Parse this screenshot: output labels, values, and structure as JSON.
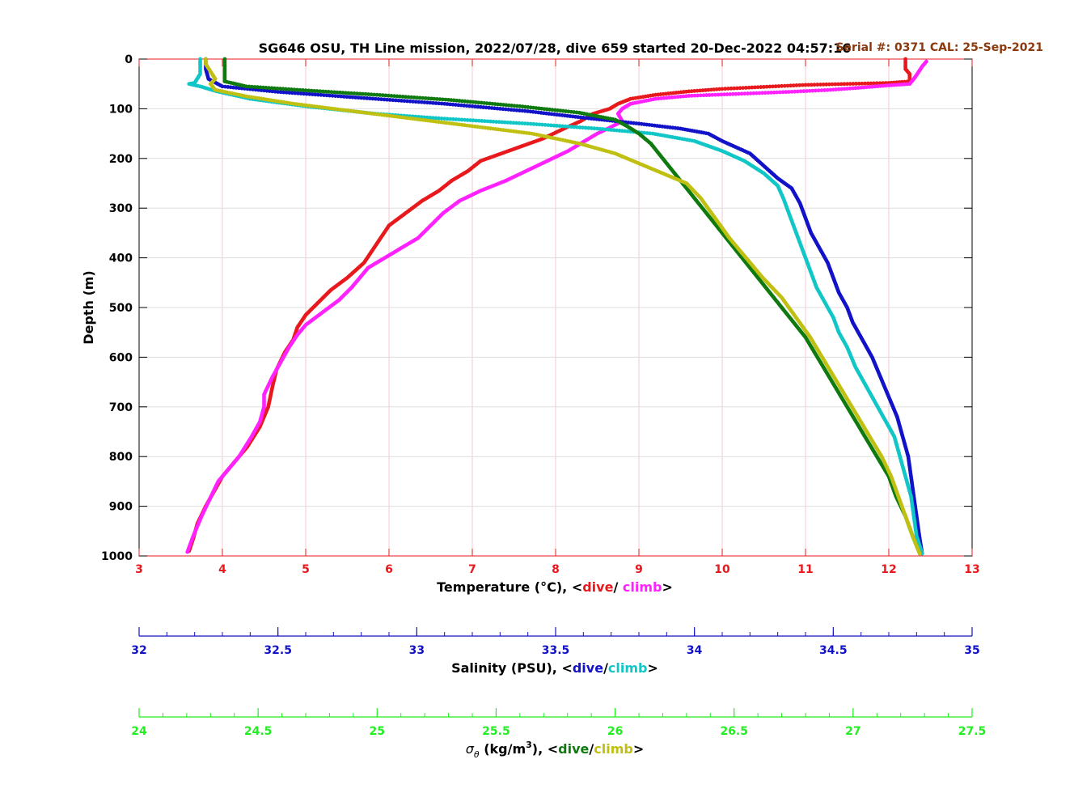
{
  "chart_data": {
    "type": "scatter",
    "title": "SG646 OSU, TH Line mission, 2022/07/28, dive 659 started 20-Dec-2022 04:57:16",
    "annotation": "Serial #: 0371  CAL: 25-Sep-2021",
    "ylabel": "Depth (m)",
    "ylim": [
      0,
      1000
    ],
    "y_reversed": true,
    "yticks": [
      "0",
      "100",
      "200",
      "300",
      "400",
      "500",
      "600",
      "700",
      "800",
      "900",
      "1000"
    ],
    "grid": true,
    "colors": {
      "temperature_axis": "#e8191c",
      "salinity_axis": "#1212c8",
      "sigma_axis": "#22ee22",
      "title": "#000000",
      "annotation": "#8b3a0f"
    },
    "axes": [
      {
        "id": "temperature",
        "label_prefix": "Temperature (°C), <",
        "label_dive": "dive",
        "label_sep": "/ ",
        "label_climb": "climb",
        "label_suffix": ">",
        "xlim": [
          3,
          13
        ],
        "ticks": [
          "3",
          "4",
          "5",
          "6",
          "7",
          "8",
          "9",
          "10",
          "11",
          "12",
          "13"
        ]
      },
      {
        "id": "salinity",
        "label_prefix": "Salinity (PSU), <",
        "label_dive": "dive",
        "label_sep": "/",
        "label_climb": "climb",
        "label_suffix": ">",
        "xlim": [
          32,
          35
        ],
        "ticks": [
          "32",
          "32.5",
          "33",
          "33.5",
          "34",
          "34.5",
          "35"
        ]
      },
      {
        "id": "sigma",
        "label_sigma": "σ",
        "label_sub": "θ",
        "label_units": " (kg/m",
        "label_sup": "3",
        "label_close": "), <",
        "label_dive": "dive",
        "label_sep": "/",
        "label_climb": "climb",
        "label_suffix": ">",
        "xlim": [
          24,
          27.5
        ],
        "ticks": [
          "24",
          "24.5",
          "25",
          "25.5",
          "26",
          "26.5",
          "27",
          "27.5"
        ]
      }
    ],
    "series": [
      {
        "name": "dive",
        "axis": "temperature",
        "color": "#e8191c",
        "points": [
          [
            12.2,
            0
          ],
          [
            12.2,
            20
          ],
          [
            12.25,
            30
          ],
          [
            12.25,
            45
          ],
          [
            12.0,
            48
          ],
          [
            11.5,
            50
          ],
          [
            11.0,
            52
          ],
          [
            10.5,
            56
          ],
          [
            10.0,
            60
          ],
          [
            9.6,
            65
          ],
          [
            9.2,
            72
          ],
          [
            8.9,
            80
          ],
          [
            8.75,
            90
          ],
          [
            8.65,
            100
          ],
          [
            8.45,
            110
          ],
          [
            8.3,
            125
          ],
          [
            8.1,
            140
          ],
          [
            7.85,
            160
          ],
          [
            7.6,
            175
          ],
          [
            7.35,
            190
          ],
          [
            7.1,
            205
          ],
          [
            6.95,
            225
          ],
          [
            6.75,
            245
          ],
          [
            6.6,
            265
          ],
          [
            6.4,
            285
          ],
          [
            6.2,
            310
          ],
          [
            6.0,
            335
          ],
          [
            5.9,
            360
          ],
          [
            5.8,
            385
          ],
          [
            5.7,
            410
          ],
          [
            5.5,
            440
          ],
          [
            5.3,
            465
          ],
          [
            5.15,
            490
          ],
          [
            5.0,
            515
          ],
          [
            4.9,
            540
          ],
          [
            4.85,
            565
          ],
          [
            4.75,
            590
          ],
          [
            4.65,
            625
          ],
          [
            4.6,
            660
          ],
          [
            4.55,
            700
          ],
          [
            4.45,
            740
          ],
          [
            4.3,
            780
          ],
          [
            4.15,
            810
          ],
          [
            4.0,
            840
          ],
          [
            3.9,
            870
          ],
          [
            3.8,
            900
          ],
          [
            3.7,
            935
          ],
          [
            3.65,
            965
          ],
          [
            3.6,
            990
          ]
        ]
      },
      {
        "name": "climb",
        "axis": "temperature",
        "color": "#ff22ff",
        "points": [
          [
            3.58,
            992
          ],
          [
            3.65,
            960
          ],
          [
            3.75,
            920
          ],
          [
            3.85,
            885
          ],
          [
            3.95,
            850
          ],
          [
            4.05,
            830
          ],
          [
            4.2,
            800
          ],
          [
            4.35,
            760
          ],
          [
            4.45,
            730
          ],
          [
            4.5,
            700
          ],
          [
            4.5,
            675
          ],
          [
            4.6,
            640
          ],
          [
            4.7,
            610
          ],
          [
            4.8,
            580
          ],
          [
            4.9,
            555
          ],
          [
            5.0,
            535
          ],
          [
            5.2,
            510
          ],
          [
            5.4,
            485
          ],
          [
            5.55,
            460
          ],
          [
            5.65,
            440
          ],
          [
            5.75,
            420
          ],
          [
            5.95,
            400
          ],
          [
            6.15,
            380
          ],
          [
            6.35,
            360
          ],
          [
            6.5,
            335
          ],
          [
            6.65,
            310
          ],
          [
            6.85,
            285
          ],
          [
            7.1,
            265
          ],
          [
            7.4,
            245
          ],
          [
            7.65,
            225
          ],
          [
            7.9,
            205
          ],
          [
            8.15,
            185
          ],
          [
            8.35,
            165
          ],
          [
            8.5,
            150
          ],
          [
            8.65,
            138
          ],
          [
            8.8,
            125
          ],
          [
            8.75,
            110
          ],
          [
            8.8,
            100
          ],
          [
            8.9,
            90
          ],
          [
            9.2,
            80
          ],
          [
            9.6,
            74
          ],
          [
            10.2,
            70
          ],
          [
            10.8,
            66
          ],
          [
            11.3,
            62
          ],
          [
            11.7,
            57
          ],
          [
            12.0,
            53
          ],
          [
            12.25,
            50
          ],
          [
            12.3,
            40
          ],
          [
            12.35,
            28
          ],
          [
            12.4,
            15
          ],
          [
            12.45,
            5
          ]
        ]
      },
      {
        "name": "dive",
        "axis": "salinity",
        "color": "#1212c8",
        "points": [
          [
            32.24,
            0
          ],
          [
            32.24,
            20
          ],
          [
            32.25,
            40
          ],
          [
            32.3,
            55
          ],
          [
            32.5,
            66
          ],
          [
            32.8,
            78
          ],
          [
            33.1,
            90
          ],
          [
            33.4,
            105
          ],
          [
            33.6,
            118
          ],
          [
            33.8,
            130
          ],
          [
            33.95,
            140
          ],
          [
            34.05,
            150
          ],
          [
            34.1,
            165
          ],
          [
            34.2,
            190
          ],
          [
            34.25,
            215
          ],
          [
            34.3,
            240
          ],
          [
            34.35,
            260
          ],
          [
            34.38,
            290
          ],
          [
            34.4,
            320
          ],
          [
            34.42,
            350
          ],
          [
            34.45,
            380
          ],
          [
            34.48,
            410
          ],
          [
            34.5,
            440
          ],
          [
            34.52,
            470
          ],
          [
            34.55,
            500
          ],
          [
            34.57,
            530
          ],
          [
            34.6,
            560
          ],
          [
            34.64,
            600
          ],
          [
            34.67,
            640
          ],
          [
            34.7,
            680
          ],
          [
            34.73,
            720
          ],
          [
            34.75,
            760
          ],
          [
            34.77,
            800
          ],
          [
            34.78,
            840
          ],
          [
            34.79,
            880
          ],
          [
            34.8,
            920
          ],
          [
            34.81,
            960
          ],
          [
            34.82,
            995
          ]
        ]
      },
      {
        "name": "climb",
        "axis": "salinity",
        "color": "#11c6c6",
        "points": [
          [
            34.82,
            995
          ],
          [
            34.8,
            960
          ],
          [
            34.79,
            920
          ],
          [
            34.78,
            880
          ],
          [
            34.76,
            840
          ],
          [
            34.74,
            800
          ],
          [
            34.72,
            760
          ],
          [
            34.68,
            720
          ],
          [
            34.65,
            690
          ],
          [
            34.62,
            660
          ],
          [
            34.58,
            620
          ],
          [
            34.55,
            580
          ],
          [
            34.52,
            550
          ],
          [
            34.5,
            520
          ],
          [
            34.47,
            490
          ],
          [
            34.44,
            460
          ],
          [
            34.42,
            430
          ],
          [
            34.4,
            400
          ],
          [
            34.38,
            370
          ],
          [
            34.36,
            340
          ],
          [
            34.34,
            310
          ],
          [
            34.32,
            280
          ],
          [
            34.3,
            255
          ],
          [
            34.25,
            230
          ],
          [
            34.18,
            205
          ],
          [
            34.1,
            185
          ],
          [
            34.0,
            165
          ],
          [
            33.85,
            150
          ],
          [
            33.65,
            140
          ],
          [
            33.4,
            130
          ],
          [
            33.1,
            120
          ],
          [
            32.85,
            110
          ],
          [
            32.6,
            95
          ],
          [
            32.4,
            80
          ],
          [
            32.28,
            65
          ],
          [
            32.22,
            55
          ],
          [
            32.18,
            50
          ],
          [
            32.2,
            48
          ],
          [
            32.22,
            30
          ],
          [
            32.22,
            10
          ],
          [
            32.22,
            0
          ]
        ]
      },
      {
        "name": "dive",
        "axis": "sigma",
        "color": "#0f7a0f",
        "points": [
          [
            24.36,
            0
          ],
          [
            24.36,
            20
          ],
          [
            24.36,
            45
          ],
          [
            24.45,
            55
          ],
          [
            24.7,
            63
          ],
          [
            25.0,
            72
          ],
          [
            25.3,
            82
          ],
          [
            25.6,
            95
          ],
          [
            25.85,
            108
          ],
          [
            26.0,
            122
          ],
          [
            26.05,
            135
          ],
          [
            26.1,
            150
          ],
          [
            26.15,
            170
          ],
          [
            26.2,
            200
          ],
          [
            26.25,
            230
          ],
          [
            26.3,
            260
          ],
          [
            26.35,
            290
          ],
          [
            26.4,
            320
          ],
          [
            26.45,
            350
          ],
          [
            26.5,
            380
          ],
          [
            26.55,
            410
          ],
          [
            26.6,
            440
          ],
          [
            26.65,
            470
          ],
          [
            26.7,
            500
          ],
          [
            26.75,
            530
          ],
          [
            26.8,
            560
          ],
          [
            26.85,
            600
          ],
          [
            26.9,
            640
          ],
          [
            26.95,
            680
          ],
          [
            27.0,
            720
          ],
          [
            27.05,
            760
          ],
          [
            27.1,
            800
          ],
          [
            27.15,
            840
          ],
          [
            27.18,
            880
          ],
          [
            27.22,
            920
          ],
          [
            27.25,
            960
          ],
          [
            27.28,
            995
          ]
        ]
      },
      {
        "name": "climb",
        "axis": "sigma",
        "color": "#c0c012",
        "points": [
          [
            27.28,
            995
          ],
          [
            27.25,
            960
          ],
          [
            27.22,
            920
          ],
          [
            27.19,
            880
          ],
          [
            27.16,
            840
          ],
          [
            27.12,
            800
          ],
          [
            27.07,
            760
          ],
          [
            27.02,
            720
          ],
          [
            26.97,
            680
          ],
          [
            26.92,
            640
          ],
          [
            26.87,
            600
          ],
          [
            26.82,
            560
          ],
          [
            26.76,
            520
          ],
          [
            26.7,
            480
          ],
          [
            26.62,
            440
          ],
          [
            26.55,
            400
          ],
          [
            26.48,
            360
          ],
          [
            26.42,
            320
          ],
          [
            26.36,
            280
          ],
          [
            26.3,
            250
          ],
          [
            26.2,
            230
          ],
          [
            26.1,
            210
          ],
          [
            26.0,
            190
          ],
          [
            25.85,
            170
          ],
          [
            25.65,
            150
          ],
          [
            25.4,
            135
          ],
          [
            25.15,
            120
          ],
          [
            24.9,
            105
          ],
          [
            24.65,
            90
          ],
          [
            24.45,
            75
          ],
          [
            24.32,
            62
          ],
          [
            24.3,
            50
          ],
          [
            24.32,
            40
          ],
          [
            24.3,
            25
          ],
          [
            24.28,
            10
          ],
          [
            24.28,
            0
          ]
        ]
      }
    ]
  }
}
